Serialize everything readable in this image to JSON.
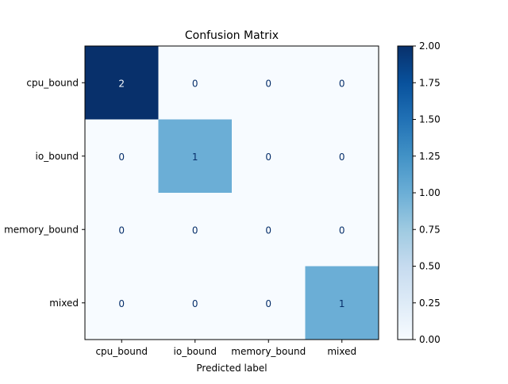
{
  "chart_data": {
    "type": "heatmap",
    "title": "Confusion Matrix",
    "xlabel": "Predicted label",
    "ylabel": "",
    "row_labels": [
      "cpu_bound",
      "io_bound",
      "memory_bound",
      "mixed"
    ],
    "col_labels": [
      "cpu_bound",
      "io_bound",
      "memory_bound",
      "mixed"
    ],
    "matrix": [
      [
        2,
        0,
        0,
        0
      ],
      [
        0,
        1,
        0,
        0
      ],
      [
        0,
        0,
        0,
        0
      ],
      [
        0,
        0,
        0,
        1
      ]
    ],
    "colormap": "Blues",
    "vmin": 0,
    "vmax": 2,
    "colorbar_ticks": [
      "0.00",
      "0.25",
      "0.50",
      "0.75",
      "1.00",
      "1.25",
      "1.50",
      "1.75",
      "2.00"
    ],
    "grid": false,
    "colors": {
      "cell_min": "#f7fbff",
      "cell_mid": "#6baed6",
      "cell_max": "#08306b",
      "text_light": "#f7fbff",
      "text_dark": "#08306b"
    }
  }
}
